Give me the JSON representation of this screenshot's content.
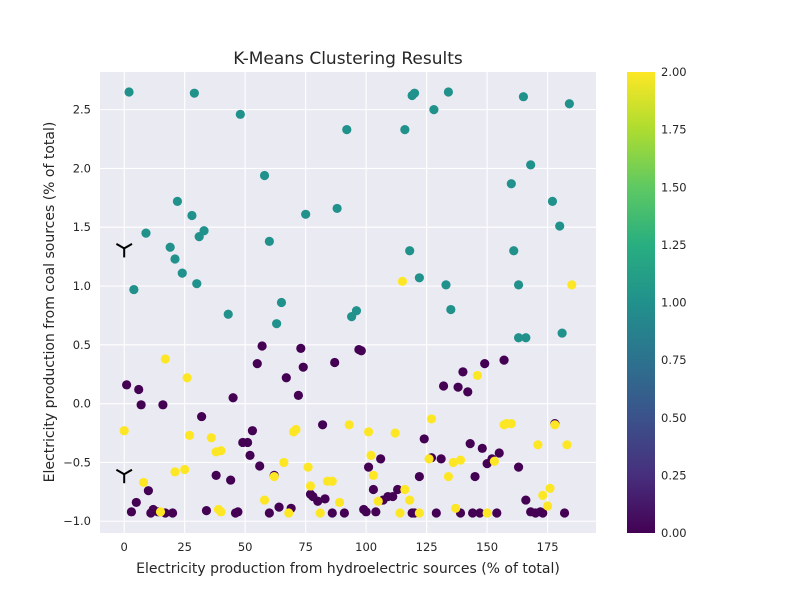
{
  "chart_data": {
    "type": "scatter",
    "title": "K-Means Clustering Results",
    "xlabel": "Electricity production from hydroelectric sources (% of total)",
    "ylabel": "Electricity production from coal sources (% of total)",
    "xlim": [
      -10,
      195
    ],
    "ylim": [
      -1.1,
      2.82
    ],
    "xticks": [
      "0",
      "25",
      "50",
      "75",
      "100",
      "125",
      "150",
      "175"
    ],
    "yticks": [
      "−1.0",
      "−0.5",
      "0.0",
      "0.5",
      "1.0",
      "1.5",
      "2.0",
      "2.5"
    ],
    "grid": true,
    "colorbar": {
      "colormap": "viridis",
      "range": [
        0,
        2
      ],
      "ticks": [
        "0.00",
        "0.25",
        "0.50",
        "0.75",
        "1.00",
        "1.25",
        "1.50",
        "1.75",
        "2.00"
      ]
    },
    "centroid_marker": "tri_down",
    "centroids": [
      {
        "x": 0,
        "y": 1.32
      },
      {
        "x": 0,
        "y": -0.6
      }
    ],
    "colors": {
      "cluster_0": "#440154",
      "cluster_1": "#21918c",
      "cluster_2": "#fde725"
    },
    "clusters": [
      {
        "label": 0,
        "points": [
          [
            1,
            0.16
          ],
          [
            6,
            0.12
          ],
          [
            7,
            -0.01
          ],
          [
            3,
            -0.92
          ],
          [
            5,
            -0.84
          ],
          [
            10,
            -0.74
          ],
          [
            11,
            -0.93
          ],
          [
            12,
            -0.9
          ],
          [
            14,
            -0.92
          ],
          [
            16,
            -0.01
          ],
          [
            17,
            -0.93
          ],
          [
            20,
            -0.93
          ],
          [
            32,
            -0.11
          ],
          [
            34,
            -0.91
          ],
          [
            38,
            -0.61
          ],
          [
            44,
            -0.65
          ],
          [
            45,
            0.05
          ],
          [
            46,
            -0.93
          ],
          [
            47,
            -0.92
          ],
          [
            49,
            -0.33
          ],
          [
            51,
            -0.33
          ],
          [
            52,
            -0.44
          ],
          [
            53,
            -0.23
          ],
          [
            55,
            0.34
          ],
          [
            56,
            -0.53
          ],
          [
            57,
            0.49
          ],
          [
            60,
            -0.93
          ],
          [
            62,
            -0.61
          ],
          [
            64,
            -0.88
          ],
          [
            67,
            0.22
          ],
          [
            69,
            -0.89
          ],
          [
            72,
            0.07
          ],
          [
            73,
            0.47
          ],
          [
            74,
            0.31
          ],
          [
            77,
            -0.77
          ],
          [
            78,
            -0.79
          ],
          [
            80,
            -0.83
          ],
          [
            82,
            -0.18
          ],
          [
            83,
            -0.81
          ],
          [
            86,
            -0.93
          ],
          [
            87,
            0.35
          ],
          [
            91,
            -0.93
          ],
          [
            97,
            0.46
          ],
          [
            98,
            0.45
          ],
          [
            99,
            -0.9
          ],
          [
            100,
            -0.92
          ],
          [
            101,
            -0.54
          ],
          [
            103,
            -0.73
          ],
          [
            104,
            -0.92
          ],
          [
            106,
            -0.47
          ],
          [
            107,
            -0.82
          ],
          [
            109,
            -0.79
          ],
          [
            111,
            -0.79
          ],
          [
            113,
            -0.73
          ],
          [
            119,
            -0.93
          ],
          [
            120,
            -0.93
          ],
          [
            122,
            -0.62
          ],
          [
            124,
            -0.3
          ],
          [
            127,
            -0.46
          ],
          [
            129,
            -0.93
          ],
          [
            131,
            -0.47
          ],
          [
            132,
            0.15
          ],
          [
            138,
            0.14
          ],
          [
            139,
            -0.93
          ],
          [
            140,
            0.27
          ],
          [
            142,
            0.1
          ],
          [
            143,
            -0.34
          ],
          [
            144,
            -0.93
          ],
          [
            145,
            -0.62
          ],
          [
            147,
            -0.93
          ],
          [
            148,
            -0.38
          ],
          [
            149,
            0.34
          ],
          [
            150,
            -0.51
          ],
          [
            152,
            -0.47
          ],
          [
            154,
            -0.93
          ],
          [
            155,
            -0.42
          ],
          [
            157,
            0.37
          ],
          [
            163,
            -0.54
          ],
          [
            166,
            -0.82
          ],
          [
            168,
            -0.92
          ],
          [
            170,
            -0.93
          ],
          [
            172,
            -0.92
          ],
          [
            173,
            -0.93
          ],
          [
            178,
            -0.17
          ],
          [
            182,
            -0.93
          ]
        ]
      },
      {
        "label": 1,
        "points": [
          [
            2,
            2.65
          ],
          [
            4,
            0.97
          ],
          [
            9,
            1.45
          ],
          [
            19,
            1.33
          ],
          [
            21,
            1.23
          ],
          [
            22,
            1.72
          ],
          [
            24,
            1.11
          ],
          [
            28,
            1.6
          ],
          [
            29,
            2.64
          ],
          [
            30,
            1.02
          ],
          [
            31,
            1.42
          ],
          [
            33,
            1.47
          ],
          [
            43,
            0.76
          ],
          [
            48,
            2.46
          ],
          [
            58,
            1.94
          ],
          [
            60,
            1.38
          ],
          [
            63,
            0.68
          ],
          [
            65,
            0.86
          ],
          [
            75,
            1.61
          ],
          [
            88,
            1.66
          ],
          [
            92,
            2.33
          ],
          [
            94,
            0.74
          ],
          [
            96,
            0.79
          ],
          [
            116,
            2.33
          ],
          [
            118,
            1.3
          ],
          [
            119,
            2.62
          ],
          [
            120,
            2.64
          ],
          [
            122,
            1.07
          ],
          [
            128,
            2.5
          ],
          [
            133,
            1.01
          ],
          [
            134,
            2.65
          ],
          [
            135,
            0.8
          ],
          [
            160,
            1.87
          ],
          [
            161,
            1.3
          ],
          [
            163,
            1.01
          ],
          [
            165,
            2.61
          ],
          [
            166,
            0.56
          ],
          [
            168,
            2.03
          ],
          [
            163,
            0.56
          ],
          [
            177,
            1.72
          ],
          [
            180,
            1.51
          ],
          [
            181,
            0.6
          ],
          [
            184,
            2.55
          ]
        ]
      },
      {
        "label": 2,
        "points": [
          [
            0,
            -0.23
          ],
          [
            8,
            -0.67
          ],
          [
            15,
            -0.92
          ],
          [
            17,
            0.38
          ],
          [
            21,
            -0.58
          ],
          [
            25,
            -0.56
          ],
          [
            26,
            0.22
          ],
          [
            27,
            -0.27
          ],
          [
            36,
            -0.29
          ],
          [
            38,
            -0.41
          ],
          [
            39,
            -0.9
          ],
          [
            40,
            -0.92
          ],
          [
            40,
            -0.4
          ],
          [
            58,
            -0.82
          ],
          [
            62,
            -0.62
          ],
          [
            66,
            -0.5
          ],
          [
            68,
            -0.93
          ],
          [
            70,
            -0.24
          ],
          [
            71,
            -0.22
          ],
          [
            76,
            -0.54
          ],
          [
            77,
            -0.7
          ],
          [
            81,
            -0.93
          ],
          [
            84,
            -0.66
          ],
          [
            86,
            -0.66
          ],
          [
            89,
            -0.84
          ],
          [
            93,
            -0.18
          ],
          [
            101,
            -0.24
          ],
          [
            102,
            -0.44
          ],
          [
            103,
            -0.61
          ],
          [
            105,
            -0.83
          ],
          [
            112,
            -0.25
          ],
          [
            114,
            -0.93
          ],
          [
            115,
            1.04
          ],
          [
            116,
            -0.73
          ],
          [
            118,
            -0.82
          ],
          [
            122,
            -0.93
          ],
          [
            126,
            -0.47
          ],
          [
            127,
            -0.13
          ],
          [
            134,
            -0.62
          ],
          [
            136,
            -0.5
          ],
          [
            137,
            -0.89
          ],
          [
            139,
            -0.48
          ],
          [
            146,
            0.24
          ],
          [
            150,
            -0.93
          ],
          [
            153,
            -0.49
          ],
          [
            158,
            -0.17
          ],
          [
            160,
            -0.17
          ],
          [
            171,
            -0.35
          ],
          [
            173,
            -0.78
          ],
          [
            175,
            -0.87
          ],
          [
            176,
            -0.72
          ],
          [
            178,
            -0.18
          ],
          [
            183,
            -0.35
          ],
          [
            185,
            1.01
          ],
          [
            157,
            -0.18
          ]
        ]
      }
    ]
  }
}
